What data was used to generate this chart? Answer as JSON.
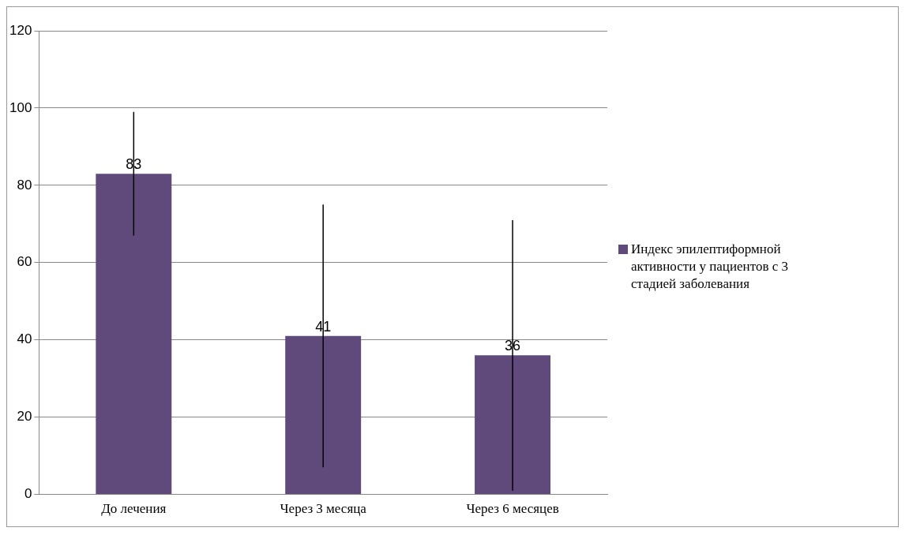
{
  "chart_data": {
    "type": "bar",
    "categories": [
      "До лечения",
      "Через 3 месяца",
      "Через 6 месяцев"
    ],
    "series": [
      {
        "name": "Индекс эпилептиформной активности у пациентов с 3 стадией заболевания",
        "color": "#604a7b",
        "values": [
          83,
          41,
          36
        ],
        "errors": [
          16,
          34,
          35
        ]
      }
    ],
    "ylim": [
      0,
      120
    ],
    "yticks": [
      0,
      20,
      40,
      60,
      80,
      100,
      120
    ],
    "grid": "y",
    "legend": "right",
    "data_labels": true
  }
}
